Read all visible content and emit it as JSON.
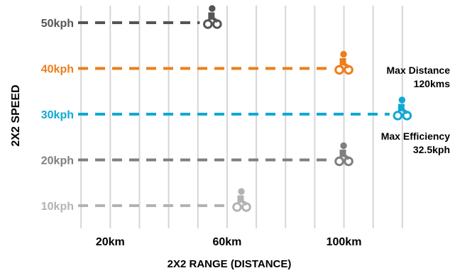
{
  "chart_data": {
    "type": "scatter",
    "ylabel": "2X2 SPEED",
    "xlabel": "2X2 RANGE (DISTANCE)",
    "x_tick_labels": [
      "20km",
      "60km",
      "100km"
    ],
    "x_ticks": [
      20,
      60,
      100
    ],
    "xlim": [
      0,
      130
    ],
    "grid": true,
    "series": [
      {
        "label": "50kph",
        "speed": 50,
        "distance": 55,
        "color": "#555555",
        "icon": "cyclist-icon"
      },
      {
        "label": "40kph",
        "speed": 40,
        "distance": 100,
        "color": "#EE7E1A",
        "icon": "cyclist-icon"
      },
      {
        "label": "30kph",
        "speed": 30,
        "distance": 120,
        "color": "#0FA9D6",
        "icon": "cyclist-icon"
      },
      {
        "label": "20kph",
        "speed": 20,
        "distance": 100,
        "color": "#7F7F7F",
        "icon": "cyclist-icon"
      },
      {
        "label": "10kph",
        "speed": 10,
        "distance": 65,
        "color": "#B3B3B3",
        "icon": "cyclist-icon"
      }
    ],
    "annotations": [
      {
        "lines": [
          "Max Distance",
          "120kms"
        ],
        "color": "#0FA9D6"
      },
      {
        "lines": [
          "Max Efficiency",
          "32.5kph"
        ],
        "color": "#0FA9D6"
      }
    ]
  }
}
